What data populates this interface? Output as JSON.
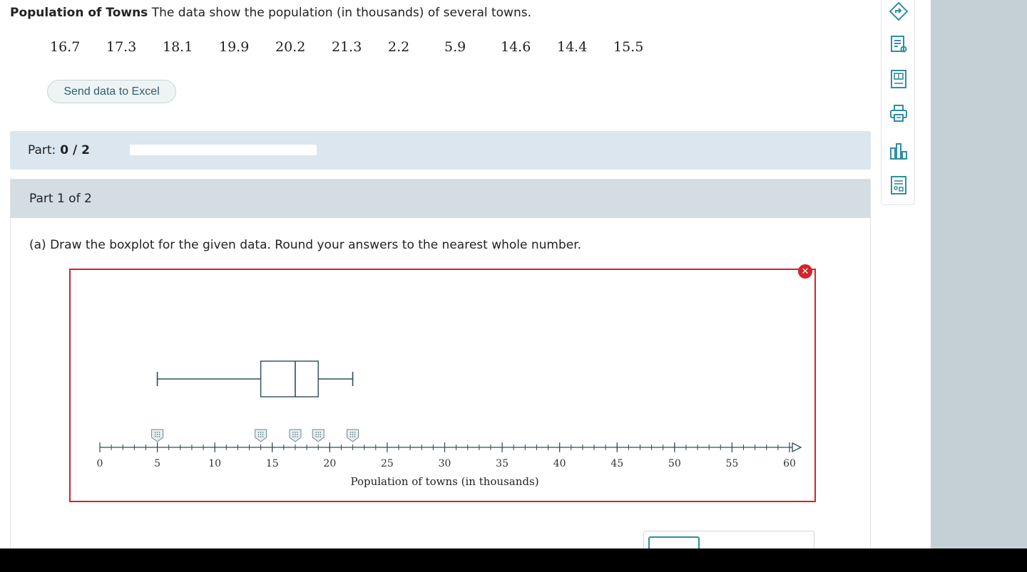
{
  "problem": {
    "title": "Population of Towns",
    "text": "The data show the population (in thousands) of several towns.",
    "values": [
      "16.7",
      "17.3",
      "18.1",
      "19.9",
      "20.2",
      "21.3",
      "2.2",
      "5.9",
      "14.6",
      "14.4",
      "15.5"
    ]
  },
  "excel_button": "Send data to Excel",
  "part_progress": {
    "label": "Part:",
    "value": "0 / 2",
    "fraction": 0
  },
  "part_header": "Part 1 of 2",
  "question": "(a) Draw the boxplot for the given data. Round your answers to the nearest whole number.",
  "error_badge": "✕",
  "chart_data": {
    "type": "boxplot",
    "xlabel": "Population of towns (in thousands)",
    "xlim": [
      0,
      60
    ],
    "major_ticks": [
      0,
      5,
      10,
      15,
      20,
      25,
      30,
      35,
      40,
      45,
      50,
      55,
      60
    ],
    "minor_tick_step": 1,
    "box": {
      "min": 5,
      "q1": 14,
      "median": 17,
      "q3": 19,
      "max": 22
    },
    "handles": [
      5,
      14,
      17,
      19,
      22
    ]
  },
  "toolbar": [
    "explanation-icon",
    "notes-icon",
    "calculator-icon",
    "print-icon",
    "chart-icon",
    "data-table-icon"
  ]
}
